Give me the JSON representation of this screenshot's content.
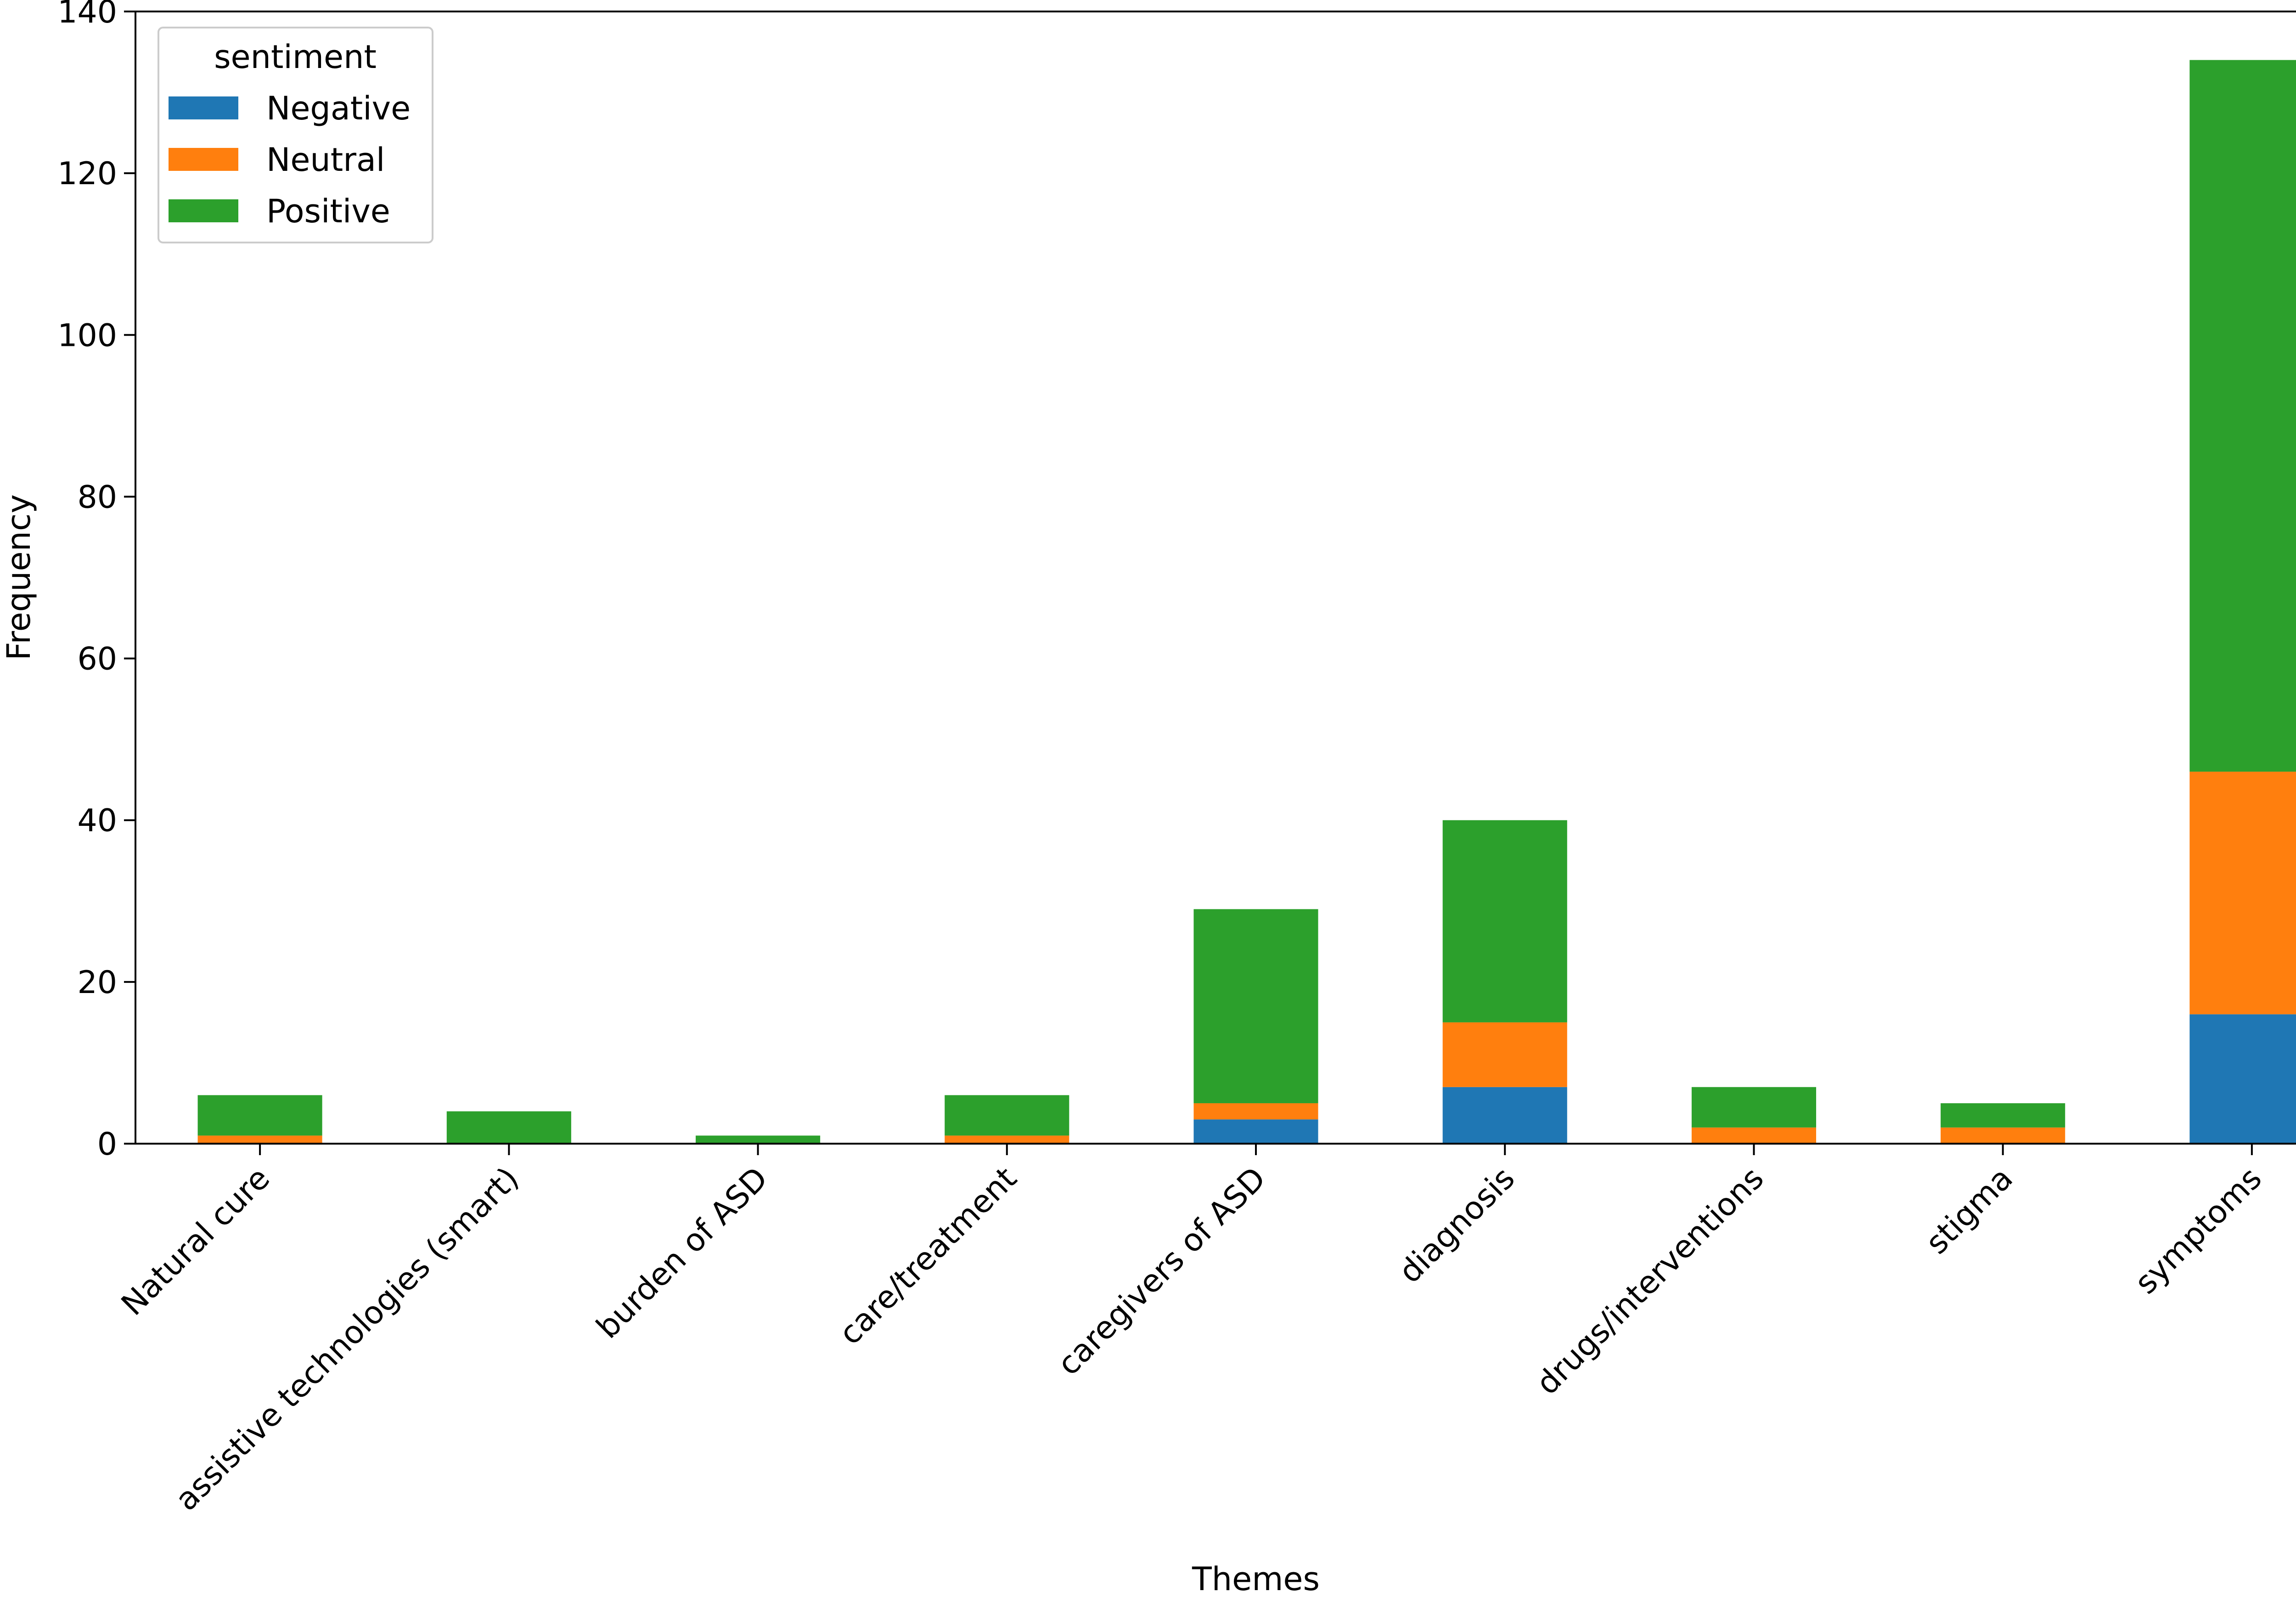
{
  "chart_data": {
    "type": "bar",
    "stacked": true,
    "title": "",
    "xlabel": "Themes",
    "ylabel": "Frequency",
    "ylim": [
      0,
      140
    ],
    "yticks": [
      0,
      20,
      40,
      60,
      80,
      100,
      120,
      140
    ],
    "grid": false,
    "legend": {
      "title": "sentiment",
      "position": "top-left"
    },
    "categories": [
      "Natural cure",
      "assistive technologies (smart)",
      "burden of ASD",
      "care/treatment",
      "caregivers of ASD",
      "diagnosis",
      "drugs/interventions",
      "stigma",
      "symptoms"
    ],
    "series": [
      {
        "name": "Negative",
        "color": "#1f77b4",
        "values": [
          0,
          0,
          0,
          0,
          3,
          7,
          0,
          0,
          16
        ]
      },
      {
        "name": "Neutral",
        "color": "#ff7f0e",
        "values": [
          1,
          0,
          0,
          1,
          2,
          8,
          2,
          2,
          30
        ]
      },
      {
        "name": "Positive",
        "color": "#2ca02c",
        "values": [
          5,
          4,
          1,
          5,
          24,
          25,
          5,
          3,
          88
        ]
      }
    ]
  }
}
